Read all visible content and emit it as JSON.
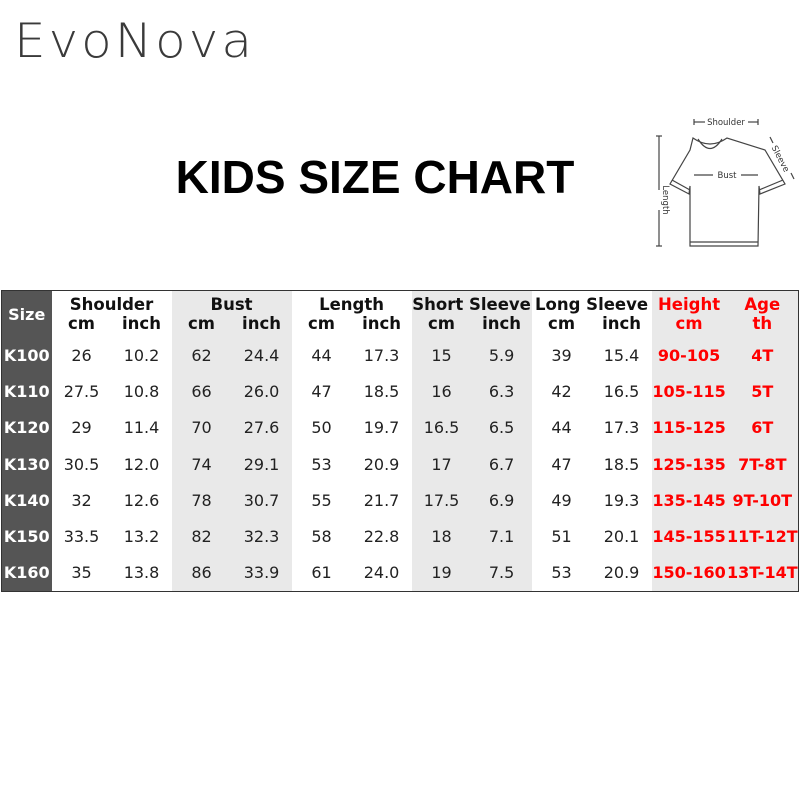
{
  "brand": {
    "logo_text": "EvoNova"
  },
  "title": "KIDS SIZE CHART",
  "diagram": {
    "shoulder": "Shoulder",
    "sleeve": "Sleeve",
    "bust": "Bust",
    "length": "Length"
  },
  "colors": {
    "size_column": "#555555",
    "shade": "#e9e9e9",
    "highlight": "#ff0000"
  },
  "table": {
    "size_header": "Size",
    "groups": [
      "Shoulder",
      "Bust",
      "Length",
      "Short Sleeve",
      "Long Sleeve",
      "Height",
      "Age"
    ],
    "units": [
      "cm",
      "inch",
      "cm",
      "inch",
      "cm",
      "inch",
      "cm",
      "inch",
      "cm",
      "inch",
      "cm",
      "th"
    ],
    "rows": [
      [
        "K100",
        "26",
        "10.2",
        "62",
        "24.4",
        "44",
        "17.3",
        "15",
        "5.9",
        "39",
        "15.4",
        "90-105",
        "4T"
      ],
      [
        "K110",
        "27.5",
        "10.8",
        "66",
        "26.0",
        "47",
        "18.5",
        "16",
        "6.3",
        "42",
        "16.5",
        "105-115",
        "5T"
      ],
      [
        "K120",
        "29",
        "11.4",
        "70",
        "27.6",
        "50",
        "19.7",
        "16.5",
        "6.5",
        "44",
        "17.3",
        "115-125",
        "6T"
      ],
      [
        "K130",
        "30.5",
        "12.0",
        "74",
        "29.1",
        "53",
        "20.9",
        "17",
        "6.7",
        "47",
        "18.5",
        "125-135",
        "7T-8T"
      ],
      [
        "K140",
        "32",
        "12.6",
        "78",
        "30.7",
        "55",
        "21.7",
        "17.5",
        "6.9",
        "49",
        "19.3",
        "135-145",
        "9T-10T"
      ],
      [
        "K150",
        "33.5",
        "13.2",
        "82",
        "32.3",
        "58",
        "22.8",
        "18",
        "7.1",
        "51",
        "20.1",
        "145-155",
        "11T-12T"
      ],
      [
        "K160",
        "35",
        "13.8",
        "86",
        "33.9",
        "61",
        "24.0",
        "19",
        "7.5",
        "53",
        "20.9",
        "150-160",
        "13T-14T"
      ]
    ]
  }
}
